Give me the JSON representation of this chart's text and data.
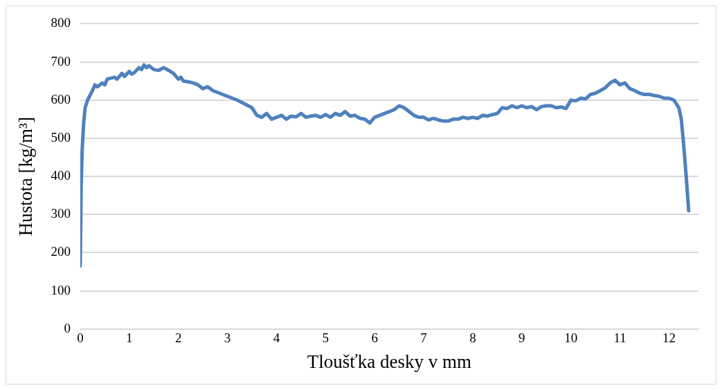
{
  "chart_data": {
    "type": "line",
    "xlabel": "Tloušťka desky v mm",
    "ylabel": "Hustota [kg/m³]",
    "x": [
      0,
      0.02,
      0.04,
      0.07,
      0.1,
      0.15,
      0.25,
      0.3,
      0.35,
      0.45,
      0.5,
      0.55,
      0.7,
      0.75,
      0.85,
      0.9,
      1.0,
      1.05,
      1.1,
      1.2,
      1.25,
      1.3,
      1.35,
      1.4,
      1.5,
      1.6,
      1.7,
      1.8,
      1.9,
      2.0,
      2.05,
      2.1,
      2.2,
      2.3,
      2.4,
      2.5,
      2.6,
      2.7,
      2.8,
      2.9,
      3.0,
      3.1,
      3.2,
      3.35,
      3.5,
      3.6,
      3.7,
      3.8,
      3.9,
      4.0,
      4.1,
      4.2,
      4.3,
      4.4,
      4.5,
      4.6,
      4.7,
      4.8,
      4.9,
      5.0,
      5.1,
      5.2,
      5.3,
      5.4,
      5.5,
      5.6,
      5.7,
      5.8,
      5.9,
      6.0,
      6.1,
      6.2,
      6.3,
      6.4,
      6.5,
      6.6,
      6.7,
      6.8,
      6.9,
      7.0,
      7.1,
      7.2,
      7.3,
      7.4,
      7.5,
      7.6,
      7.7,
      7.8,
      7.9,
      8.0,
      8.1,
      8.2,
      8.3,
      8.4,
      8.5,
      8.6,
      8.7,
      8.8,
      8.9,
      9.0,
      9.1,
      9.2,
      9.3,
      9.4,
      9.5,
      9.6,
      9.7,
      9.8,
      9.9,
      10.0,
      10.1,
      10.2,
      10.3,
      10.4,
      10.5,
      10.6,
      10.7,
      10.8,
      10.9,
      11.0,
      11.1,
      11.2,
      11.3,
      11.4,
      11.5,
      11.6,
      11.7,
      11.8,
      11.9,
      12.0,
      12.1,
      12.2,
      12.25,
      12.3,
      12.35,
      12.4
    ],
    "series": [
      {
        "color": "#4f81bd",
        "values": [
          165,
          380,
          470,
          540,
          580,
          600,
          625,
          640,
          635,
          645,
          640,
          655,
          660,
          655,
          670,
          662,
          675,
          668,
          672,
          685,
          680,
          692,
          685,
          690,
          680,
          678,
          685,
          678,
          670,
          655,
          660,
          650,
          648,
          645,
          640,
          630,
          635,
          625,
          620,
          615,
          610,
          605,
          600,
          590,
          580,
          560,
          555,
          565,
          550,
          555,
          560,
          550,
          558,
          556,
          565,
          555,
          558,
          560,
          555,
          562,
          555,
          565,
          560,
          570,
          558,
          560,
          552,
          550,
          540,
          555,
          560,
          565,
          570,
          575,
          585,
          580,
          570,
          560,
          555,
          555,
          548,
          552,
          548,
          545,
          545,
          550,
          550,
          555,
          552,
          555,
          552,
          560,
          558,
          562,
          565,
          580,
          578,
          585,
          580,
          585,
          580,
          583,
          575,
          583,
          585,
          585,
          580,
          582,
          578,
          600,
          598,
          605,
          603,
          615,
          618,
          625,
          632,
          645,
          652,
          640,
          645,
          630,
          625,
          618,
          615,
          615,
          612,
          610,
          605,
          605,
          600,
          580,
          550,
          480,
          400,
          310
        ]
      }
    ],
    "xlim": [
      0,
      12.6
    ],
    "xticks": [
      0,
      1,
      2,
      3,
      4,
      5,
      6,
      7,
      8,
      9,
      10,
      11,
      12
    ],
    "ylim": [
      0,
      800
    ],
    "yticks": [
      0,
      100,
      200,
      300,
      400,
      500,
      600,
      700,
      800
    ],
    "grid": "y",
    "legend": false,
    "marker": "none",
    "line_style": "solid"
  }
}
